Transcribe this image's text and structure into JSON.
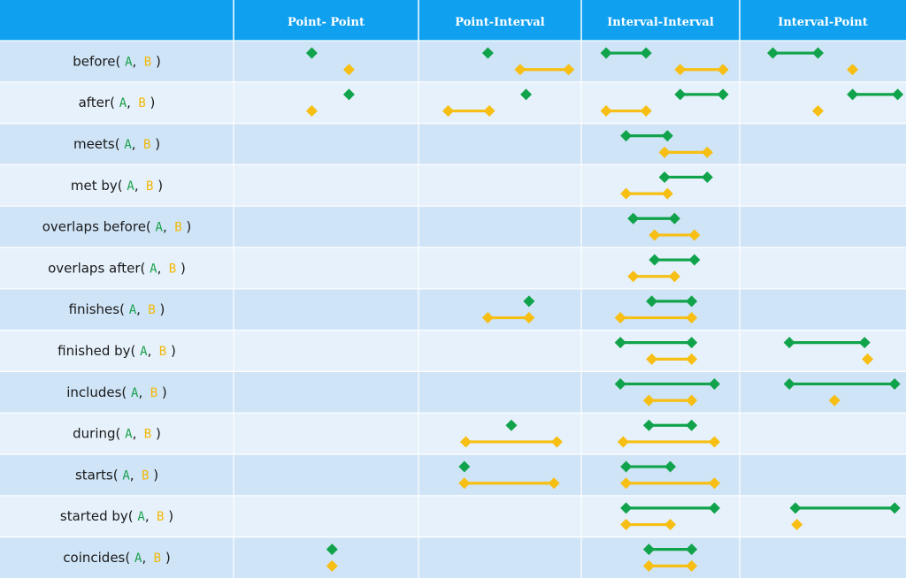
{
  "colors": {
    "header_bg": "#0fa0f0",
    "row_dark": "#cfe4f7",
    "row_light": "#e6f1fb",
    "cell_line": "#ffffff",
    "a_color": "#11a34b",
    "b_color": "#f7bf13"
  },
  "columns": [
    "Point- Point",
    "Point-Interval",
    "Interval-Interval",
    "Interval-Point"
  ],
  "args": {
    "a": "A",
    "b": "B",
    "sep": ",",
    "open": "(",
    "close": ")"
  },
  "relations": [
    {
      "name": "before",
      "cells": {
        "pp": {
          "a": [
            0.4
          ],
          "b": [
            0.62
          ]
        },
        "pi": {
          "a": [
            0.4
          ],
          "b": [
            0.62,
            0.95
          ]
        },
        "ii": {
          "a": [
            0.1,
            0.38
          ],
          "b": [
            0.62,
            0.92
          ]
        },
        "ip": {
          "a": [
            0.15,
            0.45
          ],
          "b": [
            0.68
          ]
        }
      }
    },
    {
      "name": "after",
      "cells": {
        "pp": {
          "a": [
            0.62
          ],
          "b": [
            0.4
          ]
        },
        "pi": {
          "a": [
            0.66
          ],
          "b": [
            0.13,
            0.41
          ]
        },
        "ii": {
          "a": [
            0.62,
            0.92
          ],
          "b": [
            0.1,
            0.38
          ]
        },
        "ip": {
          "a": [
            0.68,
            0.98
          ],
          "b": [
            0.45
          ]
        }
      }
    },
    {
      "name": "meets",
      "cells": {
        "ii": {
          "a": [
            0.24,
            0.53
          ],
          "b": [
            0.51,
            0.81
          ]
        }
      }
    },
    {
      "name": "met by",
      "cells": {
        "ii": {
          "a": [
            0.51,
            0.81
          ],
          "b": [
            0.24,
            0.53
          ]
        }
      }
    },
    {
      "name": "overlaps before",
      "cells": {
        "ii": {
          "a": [
            0.29,
            0.58
          ],
          "b": [
            0.44,
            0.72
          ]
        }
      }
    },
    {
      "name": "overlaps after",
      "cells": {
        "ii": {
          "a": [
            0.44,
            0.72
          ],
          "b": [
            0.29,
            0.58
          ]
        }
      }
    },
    {
      "name": "finishes",
      "cells": {
        "pi": {
          "a": [
            0.68
          ],
          "b": [
            0.4,
            0.68
          ]
        },
        "ii": {
          "a": [
            0.42,
            0.7
          ],
          "b": [
            0.2,
            0.7
          ]
        }
      }
    },
    {
      "name": "finished by",
      "cells": {
        "ii": {
          "a": [
            0.2,
            0.7
          ],
          "b": [
            0.42,
            0.7
          ]
        },
        "ip": {
          "a": [
            0.26,
            0.76
          ],
          "b": [
            0.78
          ]
        }
      }
    },
    {
      "name": "includes",
      "cells": {
        "ii": {
          "a": [
            0.2,
            0.86
          ],
          "b": [
            0.4,
            0.7
          ]
        },
        "ip": {
          "a": [
            0.26,
            0.96
          ],
          "b": [
            0.56
          ]
        }
      }
    },
    {
      "name": "during",
      "cells": {
        "pi": {
          "a": [
            0.56
          ],
          "b": [
            0.25,
            0.87
          ]
        },
        "ii": {
          "a": [
            0.4,
            0.7
          ],
          "b": [
            0.22,
            0.86
          ]
        }
      }
    },
    {
      "name": "starts",
      "cells": {
        "pi": {
          "a": [
            0.24
          ],
          "b": [
            0.24,
            0.85
          ]
        },
        "ii": {
          "a": [
            0.24,
            0.55
          ],
          "b": [
            0.24,
            0.86
          ]
        }
      }
    },
    {
      "name": "started by",
      "cells": {
        "ii": {
          "a": [
            0.24,
            0.86
          ],
          "b": [
            0.24,
            0.55
          ]
        },
        "ip": {
          "a": [
            0.3,
            0.96
          ],
          "b": [
            0.31
          ]
        }
      }
    },
    {
      "name": "coincides",
      "cells": {
        "pp": {
          "a": [
            0.52
          ],
          "b": [
            0.52
          ]
        },
        "ii": {
          "a": [
            0.4,
            0.7
          ],
          "b": [
            0.4,
            0.7
          ]
        }
      }
    }
  ]
}
